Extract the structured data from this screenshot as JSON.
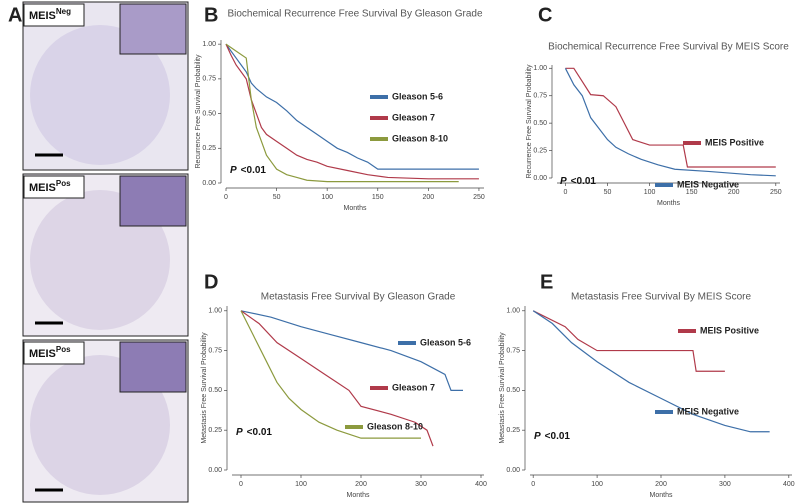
{
  "panel_labels": [
    "A",
    "B",
    "C",
    "D",
    "E"
  ],
  "panel_a": [
    {
      "label": "MEIS",
      "sup": "Neg"
    },
    {
      "label": "MEIS",
      "sup": "Pos"
    },
    {
      "label": "MEIS",
      "sup": "Pos"
    }
  ],
  "chart_data": [
    {
      "type": "line",
      "title": "Biochemical Recurrence Free Survival By Gleason Grade",
      "xlabel": "Months",
      "ylabel": "Recurrence Free Survival Probability",
      "annotation": {
        "italic": "P",
        "text": "<0.01"
      },
      "xlim": [
        0,
        255
      ],
      "xticks": [
        0,
        50,
        100,
        150,
        200,
        250
      ],
      "ylim": [
        0,
        1.03
      ],
      "yticks": [
        {
          "value": 0,
          "label": "0.00"
        },
        0.25,
        {
          "value": 0.5,
          "label": "0.50"
        },
        0.75,
        {
          "value": 1,
          "label": "1.00"
        }
      ],
      "series": [
        {
          "name": "Gleason 5-6",
          "color": "#3d6fa8",
          "x": [
            0,
            5,
            10,
            15,
            20,
            25,
            30,
            40,
            50,
            60,
            70,
            80,
            90,
            100,
            110,
            120,
            130,
            140,
            150,
            250
          ],
          "values": [
            1,
            0.95,
            0.9,
            0.85,
            0.8,
            0.72,
            0.68,
            0.62,
            0.58,
            0.52,
            0.45,
            0.4,
            0.35,
            0.3,
            0.25,
            0.22,
            0.18,
            0.15,
            0.1,
            0.1
          ]
        },
        {
          "name": "Gleason 7",
          "color": "#b03a4a",
          "x": [
            0,
            5,
            10,
            20,
            25,
            30,
            35,
            40,
            50,
            60,
            70,
            80,
            90,
            100,
            120,
            140,
            160,
            200,
            250
          ],
          "values": [
            1,
            0.92,
            0.85,
            0.75,
            0.6,
            0.5,
            0.4,
            0.35,
            0.3,
            0.25,
            0.2,
            0.17,
            0.15,
            0.12,
            0.09,
            0.06,
            0.04,
            0.03,
            0.03
          ]
        },
        {
          "name": "Gleason 8-10",
          "color": "#8c9a3e",
          "x": [
            0,
            10,
            20,
            25,
            30,
            35,
            40,
            45,
            50,
            60,
            70,
            80,
            100,
            150,
            230
          ],
          "values": [
            1,
            0.95,
            0.9,
            0.6,
            0.4,
            0.3,
            0.2,
            0.15,
            0.1,
            0.06,
            0.04,
            0.02,
            0.01,
            0.01,
            0.01
          ]
        }
      ]
    },
    {
      "type": "line",
      "title": "Biochemical Recurrence Free Survival By MEIS Score",
      "xlabel": "Months",
      "ylabel": "Recurrence Free Survival Probability",
      "annotation": {
        "italic": "P",
        "text": "<0.01"
      },
      "xlim": [
        -10,
        255
      ],
      "xticks": [
        0,
        50,
        100,
        150,
        200,
        250
      ],
      "ylim": [
        0,
        1.03
      ],
      "yticks": [
        {
          "value": 0,
          "label": "0.00"
        },
        0.25,
        {
          "value": 0.5,
          "label": "0.50"
        },
        0.75,
        {
          "value": 1,
          "label": "1.00"
        }
      ],
      "series": [
        {
          "name": "MEIS Positive",
          "color": "#b03a4a",
          "x": [
            0,
            10,
            20,
            30,
            45,
            60,
            70,
            80,
            100,
            140,
            145,
            250
          ],
          "values": [
            1,
            1,
            0.88,
            0.76,
            0.75,
            0.65,
            0.5,
            0.35,
            0.3,
            0.3,
            0.1,
            0.1
          ]
        },
        {
          "name": "MEIS Negative",
          "color": "#3d6fa8",
          "x": [
            0,
            10,
            20,
            30,
            40,
            50,
            60,
            75,
            90,
            110,
            130,
            170,
            220,
            250
          ],
          "values": [
            1,
            0.85,
            0.75,
            0.55,
            0.45,
            0.35,
            0.28,
            0.22,
            0.17,
            0.12,
            0.08,
            0.06,
            0.03,
            0.02
          ]
        }
      ]
    },
    {
      "type": "line",
      "title": "Metastasis Free Survival By Gleason Grade",
      "xlabel": "Months",
      "ylabel": "Metastasis Free Survival Probability",
      "annotation": {
        "italic": "P",
        "text": "<0.01"
      },
      "xlim": [
        -15,
        405
      ],
      "xticks": [
        0,
        100,
        200,
        300,
        400
      ],
      "ylim": [
        0,
        1.03
      ],
      "yticks": [
        {
          "value": 0,
          "label": "0.00"
        },
        0.25,
        {
          "value": 0.5,
          "label": "0.50"
        },
        0.75,
        {
          "value": 1,
          "label": "1.00"
        }
      ],
      "series": [
        {
          "name": "Gleason 5-6",
          "color": "#3d6fa8",
          "x": [
            0,
            50,
            100,
            150,
            200,
            250,
            300,
            340,
            350,
            370
          ],
          "values": [
            1,
            0.96,
            0.9,
            0.85,
            0.8,
            0.75,
            0.68,
            0.6,
            0.5,
            0.5
          ]
        },
        {
          "name": "Gleason 7",
          "color": "#b03a4a",
          "x": [
            0,
            30,
            60,
            100,
            140,
            180,
            200,
            250,
            290,
            310,
            320
          ],
          "values": [
            1,
            0.92,
            0.8,
            0.7,
            0.6,
            0.5,
            0.4,
            0.35,
            0.3,
            0.25,
            0.15
          ]
        },
        {
          "name": "Gleason 8-10",
          "color": "#8c9a3e",
          "x": [
            0,
            20,
            40,
            60,
            80,
            100,
            130,
            160,
            200,
            300
          ],
          "values": [
            1,
            0.85,
            0.7,
            0.55,
            0.45,
            0.38,
            0.3,
            0.25,
            0.2,
            0.2
          ]
        }
      ]
    },
    {
      "type": "line",
      "title": "Metastasis Free Survival By MEIS Score",
      "xlabel": "Months",
      "ylabel": "Metastasis Free Survival Probability",
      "annotation": {
        "italic": "P",
        "text": "<0.01"
      },
      "xlim": [
        -5,
        405
      ],
      "xticks": [
        0,
        100,
        200,
        300,
        400
      ],
      "ylim": [
        0,
        1.03
      ],
      "yticks": [
        {
          "value": 0,
          "label": "0.00"
        },
        0.25,
        {
          "value": 0.5,
          "label": "0.50"
        },
        0.75,
        {
          "value": 1,
          "label": "1.00"
        }
      ],
      "series": [
        {
          "name": "MEIS Positive",
          "color": "#b03a4a",
          "x": [
            0,
            50,
            70,
            100,
            250,
            255,
            300
          ],
          "values": [
            1,
            0.9,
            0.82,
            0.75,
            0.75,
            0.62,
            0.62
          ]
        },
        {
          "name": "MEIS Negative",
          "color": "#3d6fa8",
          "x": [
            0,
            30,
            60,
            100,
            150,
            200,
            250,
            300,
            340,
            370
          ],
          "values": [
            1,
            0.92,
            0.8,
            0.68,
            0.55,
            0.45,
            0.35,
            0.28,
            0.24,
            0.24
          ]
        }
      ]
    }
  ]
}
